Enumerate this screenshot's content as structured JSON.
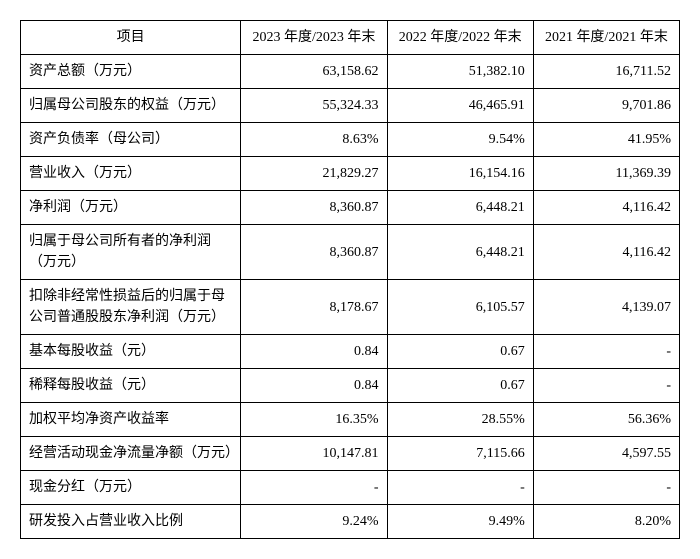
{
  "table": {
    "headers": {
      "item": "项目",
      "y2023": "2023 年度/2023 年末",
      "y2022": "2022 年度/2022 年末",
      "y2021": "2021 年度/2021 年末"
    },
    "rows": [
      {
        "label": "资产总额（万元）",
        "y2023": "63,158.62",
        "y2022": "51,382.10",
        "y2021": "16,711.52"
      },
      {
        "label": "归属母公司股东的权益（万元）",
        "y2023": "55,324.33",
        "y2022": "46,465.91",
        "y2021": "9,701.86"
      },
      {
        "label": "资产负债率（母公司）",
        "y2023": "8.63%",
        "y2022": "9.54%",
        "y2021": "41.95%"
      },
      {
        "label": "营业收入（万元）",
        "y2023": "21,829.27",
        "y2022": "16,154.16",
        "y2021": "11,369.39"
      },
      {
        "label": "净利润（万元）",
        "y2023": "8,360.87",
        "y2022": "6,448.21",
        "y2021": "4,116.42"
      },
      {
        "label": "归属于母公司所有者的净利润（万元）",
        "y2023": "8,360.87",
        "y2022": "6,448.21",
        "y2021": "4,116.42"
      },
      {
        "label": "扣除非经常性损益后的归属于母公司普通股股东净利润（万元）",
        "y2023": "8,178.67",
        "y2022": "6,105.57",
        "y2021": "4,139.07"
      },
      {
        "label": "基本每股收益（元）",
        "y2023": "0.84",
        "y2022": "0.67",
        "y2021": "-"
      },
      {
        "label": "稀释每股收益（元）",
        "y2023": "0.84",
        "y2022": "0.67",
        "y2021": "-"
      },
      {
        "label": "加权平均净资产收益率",
        "y2023": "16.35%",
        "y2022": "28.55%",
        "y2021": "56.36%"
      },
      {
        "label": "经营活动现金净流量净额（万元）",
        "y2023": "10,147.81",
        "y2022": "7,115.66",
        "y2021": "4,597.55"
      },
      {
        "label": "现金分红（万元）",
        "y2023": "-",
        "y2022": "-",
        "y2021": "-"
      },
      {
        "label": "研发投入占营业收入比例",
        "y2023": "9.24%",
        "y2022": "9.49%",
        "y2021": "8.20%"
      }
    ]
  }
}
